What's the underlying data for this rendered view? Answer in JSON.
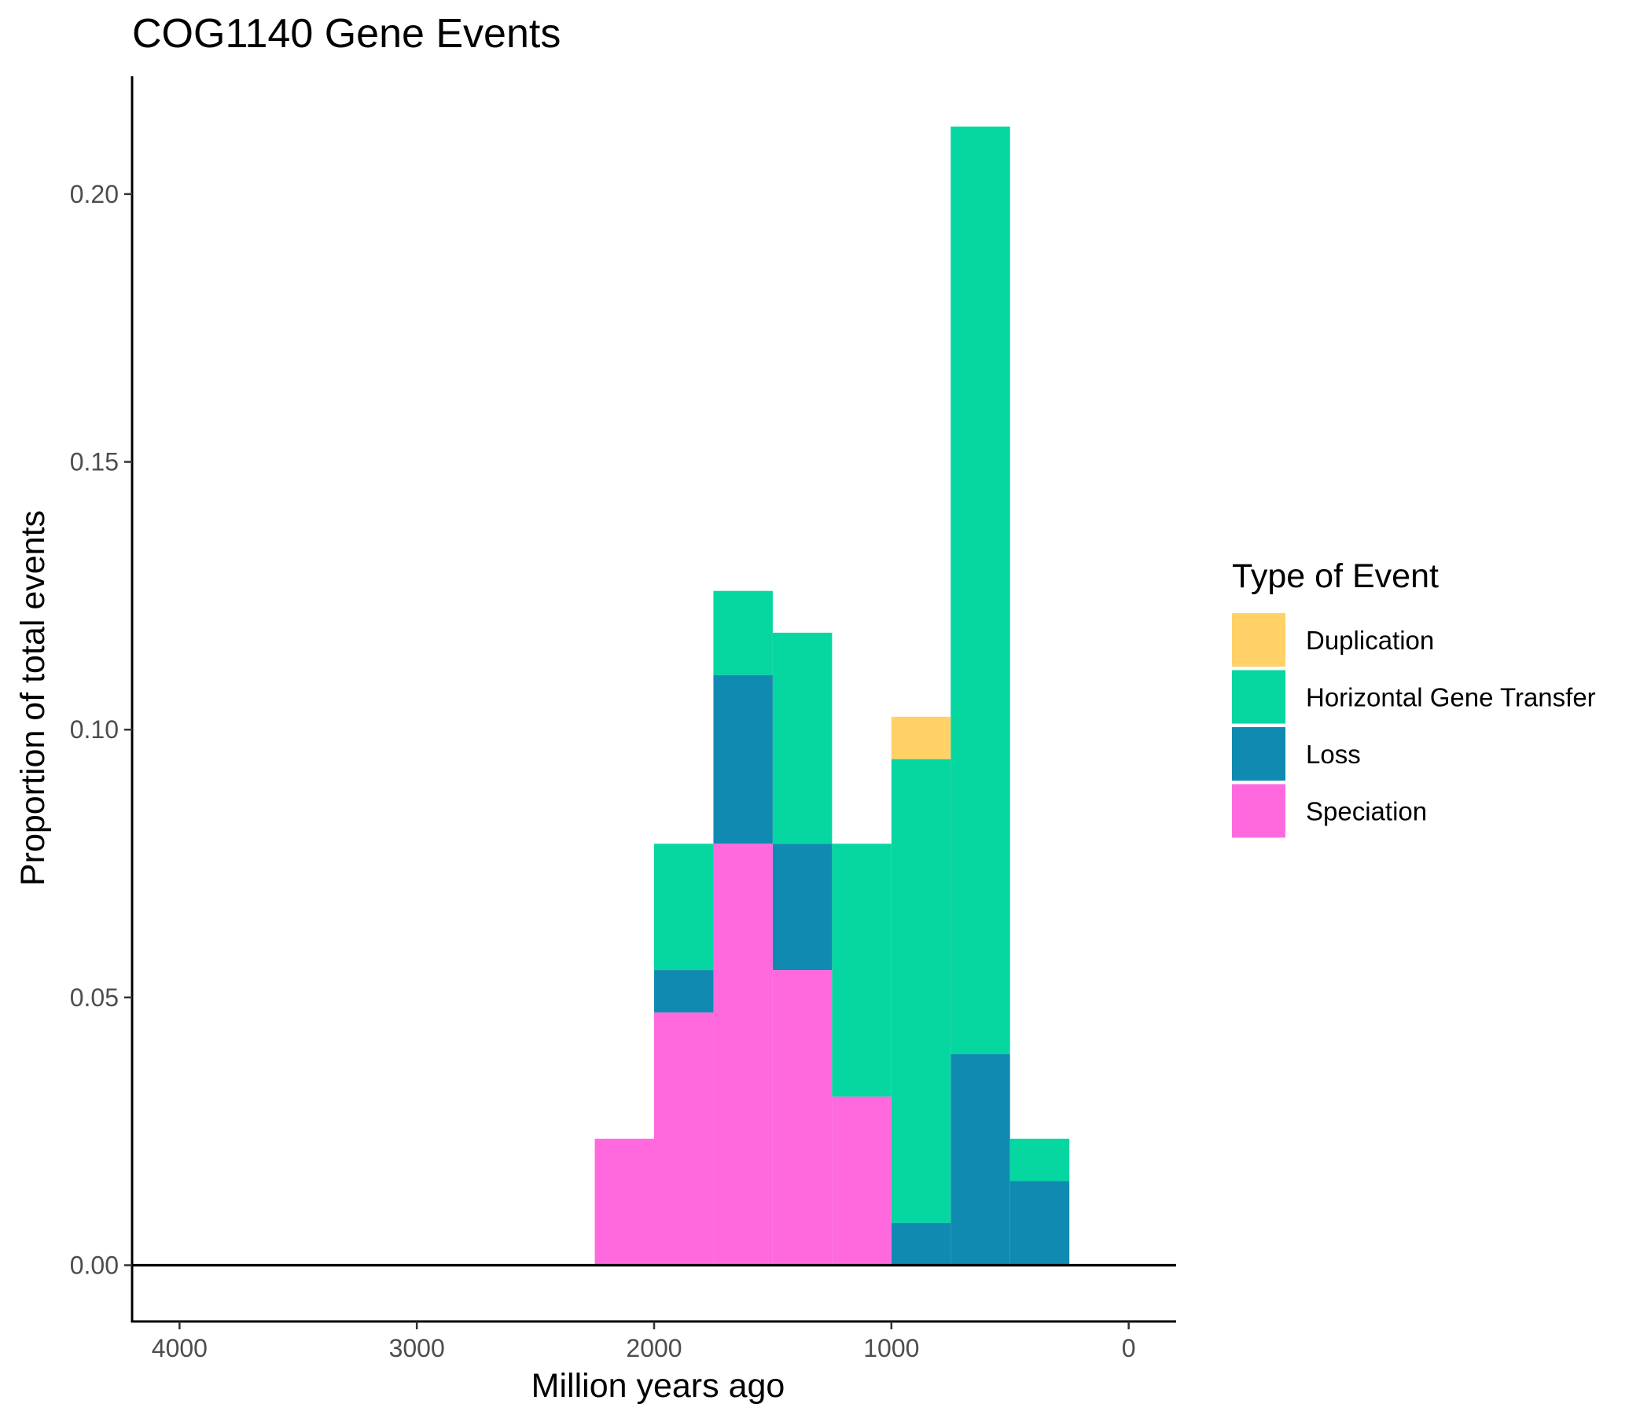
{
  "chart_data": {
    "type": "bar",
    "stacked": true,
    "title": "COG1140 Gene Events",
    "xlabel": "Million years ago",
    "ylabel": "Proportion of total events",
    "x_reversed": true,
    "xlim": [
      4200,
      -200
    ],
    "ylim": [
      -0.0105,
      0.222
    ],
    "x_ticks": [
      4000,
      3000,
      2000,
      1000,
      0
    ],
    "x_tick_labels": [
      "4000",
      "3000",
      "2000",
      "1000",
      "0"
    ],
    "y_ticks": [
      0.0,
      0.05,
      0.1,
      0.15,
      0.2
    ],
    "y_tick_labels": [
      "0.00",
      "0.05",
      "0.10",
      "0.15",
      "0.20"
    ],
    "hline_y": 0,
    "grid": false,
    "legend_title": "Type of Event",
    "legend_position": "right",
    "bins": [
      [
        2250,
        2000
      ],
      [
        2000,
        1750
      ],
      [
        1750,
        1500
      ],
      [
        1500,
        1250
      ],
      [
        1250,
        1000
      ],
      [
        1000,
        750
      ],
      [
        750,
        500
      ],
      [
        500,
        250
      ]
    ],
    "series": [
      {
        "name": "Speciation",
        "color": "#FF69DD",
        "values": [
          0.0236,
          0.0472,
          0.0787,
          0.0551,
          0.0315,
          0,
          0,
          0
        ]
      },
      {
        "name": "Loss",
        "color": "#118AB2",
        "values": [
          0,
          0.0079,
          0.0315,
          0.0236,
          0,
          0.0079,
          0.0394,
          0.0157
        ]
      },
      {
        "name": "Horizontal Gene Transfer",
        "color": "#06D6A0",
        "values": [
          0,
          0.0236,
          0.0157,
          0.0394,
          0.0472,
          0.0866,
          0.1732,
          0.0079
        ]
      },
      {
        "name": "Duplication",
        "color": "#FFD166",
        "values": [
          0,
          0,
          0,
          0,
          0,
          0.0079,
          0,
          0
        ]
      }
    ],
    "legend_order": [
      "Duplication",
      "Horizontal Gene Transfer",
      "Loss",
      "Speciation"
    ]
  }
}
